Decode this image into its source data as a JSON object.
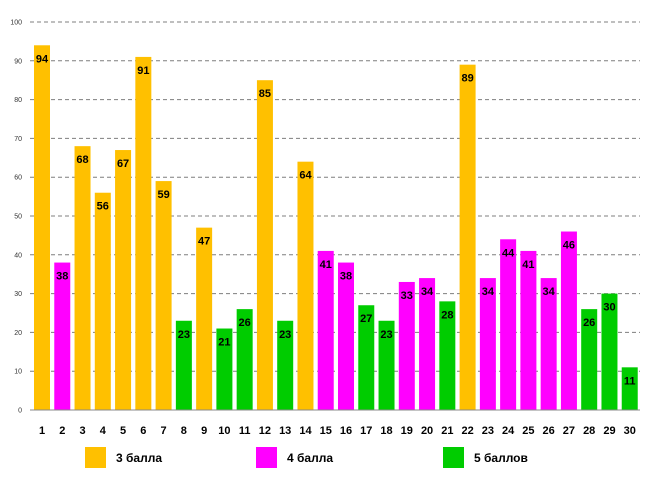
{
  "chart_data": {
    "type": "bar",
    "title": "",
    "xlabel": "",
    "ylabel": "",
    "ylim": [
      0,
      100
    ],
    "yticks": [
      0,
      10,
      20,
      30,
      40,
      50,
      60,
      70,
      80,
      90,
      100
    ],
    "grid": true,
    "legend": [
      {
        "key": "c3",
        "label": "3 балла",
        "color": "#FFC000"
      },
      {
        "key": "c4",
        "label": "4 балла",
        "color": "#FF00FF"
      },
      {
        "key": "c5",
        "label": "5 баллов",
        "color": "#00CC00"
      }
    ],
    "categories": [
      "1",
      "2",
      "3",
      "4",
      "5",
      "6",
      "7",
      "8",
      "9",
      "10",
      "11",
      "12",
      "13",
      "14",
      "15",
      "16",
      "17",
      "18",
      "19",
      "20",
      "21",
      "22",
      "23",
      "24",
      "25",
      "26",
      "27",
      "28",
      "29",
      "30"
    ],
    "values": [
      94,
      38,
      68,
      56,
      67,
      91,
      59,
      23,
      47,
      21,
      26,
      85,
      23,
      64,
      41,
      38,
      27,
      23,
      33,
      34,
      28,
      89,
      34,
      44,
      41,
      34,
      46,
      26,
      30,
      11
    ],
    "groups": [
      "c3",
      "c4",
      "c3",
      "c3",
      "c3",
      "c3",
      "c3",
      "c5",
      "c3",
      "c5",
      "c5",
      "c3",
      "c5",
      "c3",
      "c4",
      "c4",
      "c5",
      "c5",
      "c4",
      "c4",
      "c5",
      "c3",
      "c4",
      "c4",
      "c4",
      "c4",
      "c4",
      "c5",
      "c5",
      "c5"
    ]
  }
}
